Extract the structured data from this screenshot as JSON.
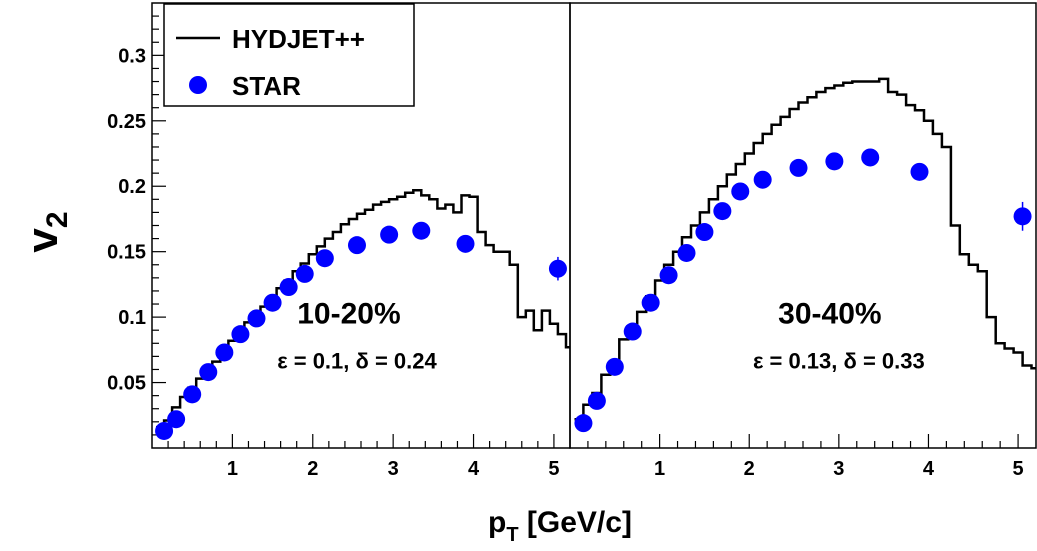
{
  "figure": {
    "ylabel_main": "v",
    "ylabel_sub": "2",
    "xlabel_main": "p",
    "xlabel_sub": "T",
    "xlabel_rest": " [GeV/c]",
    "legend": {
      "placement": "top-left",
      "entries": [
        {
          "label": "HYDJET++",
          "kind": "line",
          "color": "#000000"
        },
        {
          "label": "STAR",
          "kind": "marker",
          "color": "#0000ff"
        }
      ]
    }
  },
  "chart_data": [
    {
      "type": "step",
      "panel": "left",
      "centrality_label": "10-20%",
      "param_label": "ε = 0.1, δ = 0.24",
      "xlim": [
        0.0,
        5.2
      ],
      "ylim": [
        0.0,
        0.34
      ],
      "xticks": [
        1,
        2,
        3,
        4,
        5
      ],
      "yticks": [
        0.05,
        0.1,
        0.15,
        0.2,
        0.25,
        0.3
      ],
      "ytick_labels": [
        "0.05",
        "0.1",
        "0.15",
        "0.2",
        "0.25",
        "0.3"
      ],
      "series": [
        {
          "name": "HYDJET++",
          "kind": "step",
          "x": [
            0.1,
            0.2,
            0.3,
            0.4,
            0.5,
            0.6,
            0.7,
            0.8,
            0.9,
            1.0,
            1.1,
            1.2,
            1.3,
            1.4,
            1.5,
            1.6,
            1.7,
            1.8,
            1.9,
            2.0,
            2.1,
            2.2,
            2.3,
            2.4,
            2.5,
            2.6,
            2.7,
            2.8,
            2.9,
            3.0,
            3.1,
            3.2,
            3.3,
            3.4,
            3.5,
            3.6,
            3.7,
            3.8,
            3.9,
            4.0,
            4.1,
            4.2,
            4.3,
            4.4,
            4.5,
            4.6,
            4.7,
            4.8,
            4.9,
            5.0,
            5.1,
            5.2
          ],
          "y": [
            0.016,
            0.021,
            0.031,
            0.039,
            0.046,
            0.053,
            0.061,
            0.066,
            0.073,
            0.082,
            0.089,
            0.096,
            0.101,
            0.108,
            0.115,
            0.122,
            0.128,
            0.135,
            0.141,
            0.148,
            0.154,
            0.16,
            0.165,
            0.171,
            0.175,
            0.179,
            0.182,
            0.186,
            0.188,
            0.19,
            0.192,
            0.195,
            0.197,
            0.193,
            0.19,
            0.183,
            0.186,
            0.18,
            0.193,
            0.192,
            0.165,
            0.155,
            0.15,
            0.15,
            0.14,
            0.1,
            0.105,
            0.09,
            0.105,
            0.095,
            0.087,
            0.077
          ]
        },
        {
          "name": "STAR",
          "kind": "scatter",
          "x": [
            0.15,
            0.3,
            0.5,
            0.7,
            0.9,
            1.1,
            1.3,
            1.5,
            1.7,
            1.9,
            2.15,
            2.55,
            2.95,
            3.35,
            3.9,
            5.05
          ],
          "y": [
            0.013,
            0.022,
            0.041,
            0.058,
            0.073,
            0.087,
            0.099,
            0.111,
            0.123,
            0.133,
            0.145,
            0.155,
            0.163,
            0.166,
            0.156,
            0.137
          ],
          "yerr": [
            0,
            0,
            0,
            0,
            0,
            0,
            0,
            0,
            0,
            0,
            0,
            0,
            0,
            0,
            0,
            0.009
          ]
        }
      ]
    },
    {
      "type": "step",
      "panel": "right",
      "centrality_label": "30-40%",
      "param_label": "ε = 0.13, δ = 0.33",
      "xlim": [
        0.0,
        5.2
      ],
      "ylim": [
        0.0,
        0.34
      ],
      "xticks": [
        1,
        2,
        3,
        4,
        5
      ],
      "series": [
        {
          "name": "HYDJET++",
          "kind": "step",
          "x": [
            0.1,
            0.2,
            0.3,
            0.4,
            0.5,
            0.6,
            0.7,
            0.8,
            0.9,
            1.0,
            1.1,
            1.2,
            1.3,
            1.4,
            1.5,
            1.6,
            1.7,
            1.8,
            1.9,
            2.0,
            2.1,
            2.2,
            2.3,
            2.4,
            2.5,
            2.6,
            2.7,
            2.8,
            2.9,
            3.0,
            3.1,
            3.2,
            3.3,
            3.4,
            3.5,
            3.6,
            3.7,
            3.8,
            3.9,
            4.0,
            4.1,
            4.2,
            4.3,
            4.4,
            4.5,
            4.6,
            4.7,
            4.8,
            4.9,
            5.0,
            5.1,
            5.2
          ],
          "y": [
            0.022,
            0.033,
            0.042,
            0.056,
            0.065,
            0.083,
            0.093,
            0.104,
            0.116,
            0.128,
            0.14,
            0.15,
            0.161,
            0.17,
            0.18,
            0.19,
            0.2,
            0.209,
            0.217,
            0.225,
            0.233,
            0.24,
            0.247,
            0.253,
            0.259,
            0.264,
            0.268,
            0.272,
            0.275,
            0.277,
            0.279,
            0.28,
            0.28,
            0.28,
            0.282,
            0.272,
            0.27,
            0.262,
            0.258,
            0.25,
            0.24,
            0.23,
            0.17,
            0.148,
            0.14,
            0.135,
            0.1,
            0.08,
            0.076,
            0.073,
            0.063,
            0.061
          ]
        },
        {
          "name": "STAR",
          "kind": "scatter",
          "x": [
            0.15,
            0.3,
            0.5,
            0.7,
            0.9,
            1.1,
            1.3,
            1.5,
            1.7,
            1.9,
            2.15,
            2.55,
            2.95,
            3.35,
            3.9,
            5.05
          ],
          "y": [
            0.019,
            0.036,
            0.062,
            0.089,
            0.111,
            0.132,
            0.149,
            0.165,
            0.181,
            0.196,
            0.205,
            0.214,
            0.219,
            0.222,
            0.211,
            0.177
          ],
          "yerr": [
            0,
            0,
            0,
            0,
            0,
            0,
            0,
            0,
            0,
            0,
            0,
            0,
            0,
            0,
            0,
            0.011
          ]
        }
      ]
    }
  ]
}
